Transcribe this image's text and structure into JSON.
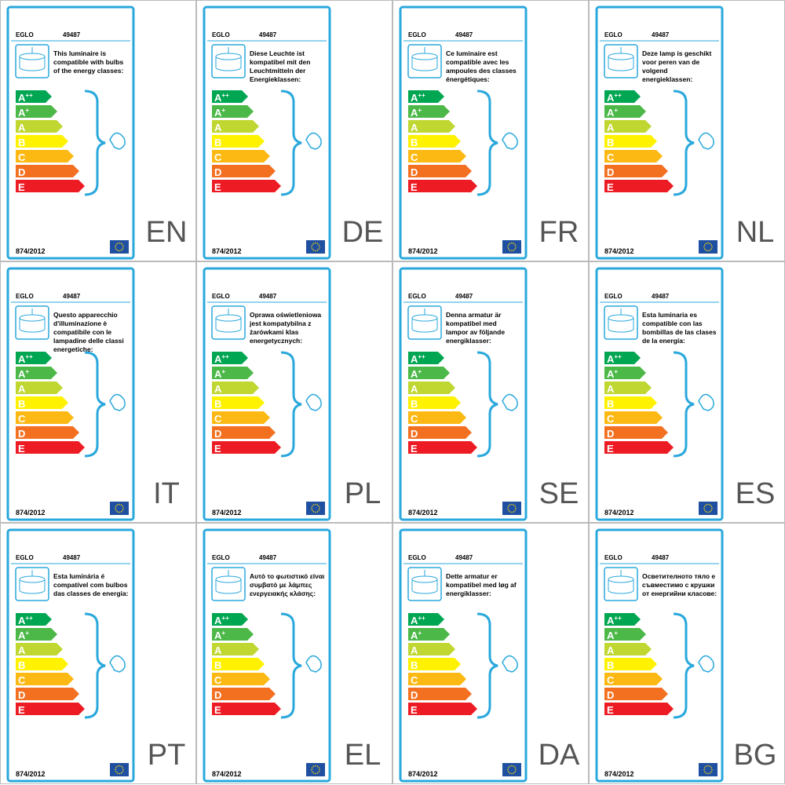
{
  "brand": "EGLO",
  "model": "49487",
  "regulation": "874/2012",
  "classes": [
    {
      "base": "A",
      "sup": "++"
    },
    {
      "base": "A",
      "sup": "+"
    },
    {
      "base": "A"
    },
    {
      "base": "B"
    },
    {
      "base": "C"
    },
    {
      "base": "D"
    },
    {
      "base": "E"
    }
  ],
  "labels": [
    {
      "lang": "EN",
      "text": [
        "This luminaire is",
        "compatible with bulbs",
        "of the energy classes:"
      ]
    },
    {
      "lang": "DE",
      "text": [
        "Diese Leuchte ist",
        "kompatibel mit den",
        "Leuchtmitteln der",
        "Energieklassen:"
      ]
    },
    {
      "lang": "FR",
      "text": [
        "Ce luminaire est",
        "compatible avec les",
        "ampoules des classes",
        "énergétiques:"
      ]
    },
    {
      "lang": "NL",
      "text": [
        "Deze lamp is geschikt",
        "voor peren van de",
        "volgend",
        "energieklassen:"
      ]
    },
    {
      "lang": "IT",
      "text": [
        "Questo apparecchio",
        "d'illuminazione è",
        "compatibile con le",
        "lampadine delle classi",
        "energetiche:"
      ]
    },
    {
      "lang": "PL",
      "text": [
        "Oprawa oświetleniowa",
        "jest kompatybilna z",
        "żarówkami klas",
        "energetycznych:"
      ]
    },
    {
      "lang": "SE",
      "text": [
        "Denna armatur är",
        "kompatibel med",
        "lampor av följande",
        "energiklasser:"
      ]
    },
    {
      "lang": "ES",
      "text": [
        "Esta luminaria es",
        "compatible con las",
        "bombillas de las clases",
        "de la energía:"
      ]
    },
    {
      "lang": "PT",
      "text": [
        "Esta luminária é",
        "compatível com bulbos",
        "das classes de energia:"
      ]
    },
    {
      "lang": "EL",
      "text": [
        "Αυτό το φωτιστικό είναι",
        "συμβατό με λάμπες",
        "ενεργειακής κλάσης:"
      ]
    },
    {
      "lang": "DA",
      "text": [
        "Dette armatur er",
        "kompatibel med løg af",
        "energiklasser:"
      ]
    },
    {
      "lang": "BG",
      "text": [
        "Осветителното тяло е",
        "съвместимо с крушки",
        "от енергийни класове:"
      ]
    }
  ]
}
